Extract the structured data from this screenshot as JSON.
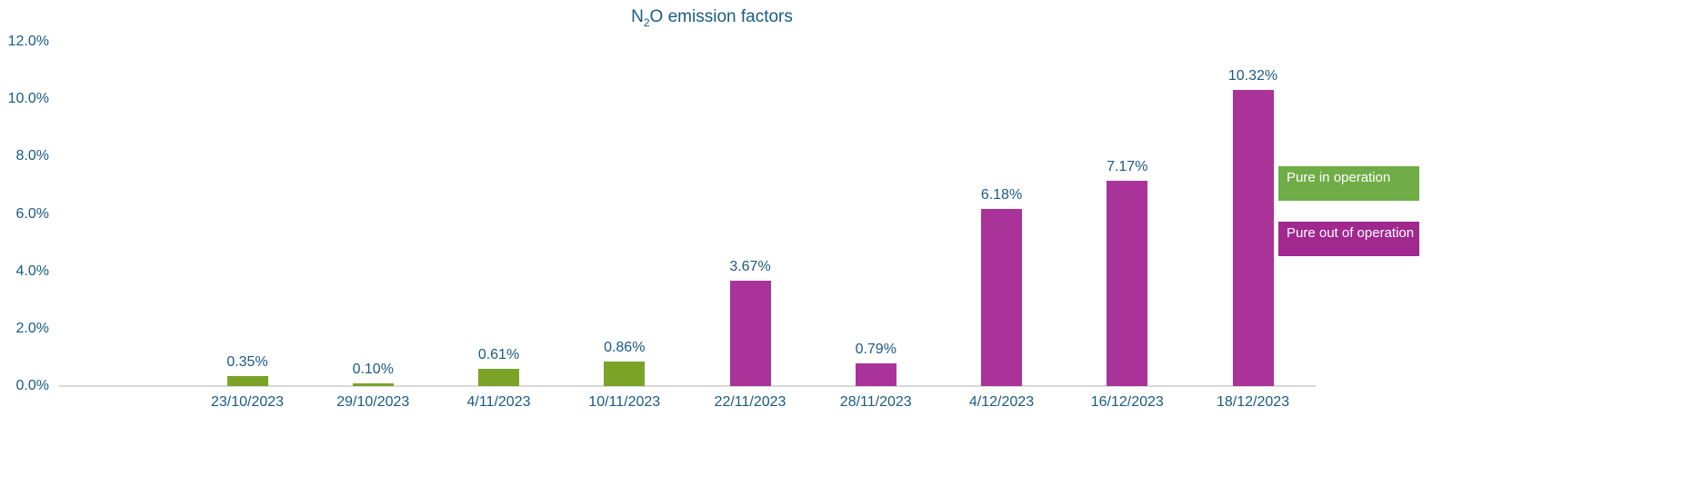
{
  "chart_data": {
    "type": "bar",
    "title": "N2O emission factors",
    "title_parts": {
      "pre": "N",
      "sub": "2",
      "post": "O emission factors"
    },
    "xlabel": "",
    "ylabel": "",
    "ylim": [
      0,
      12
    ],
    "yticks": [
      "0.0%",
      "2.0%",
      "4.0%",
      "6.0%",
      "8.0%",
      "10.0%",
      "12.0%"
    ],
    "grid": false,
    "legend_position": "right",
    "categories": [
      "23/10/2023",
      "29/10/2023",
      "4/11/2023",
      "10/11/2023",
      "22/11/2023",
      "28/11/2023",
      "4/12/2023",
      "16/12/2023",
      "18/12/2023"
    ],
    "values": [
      0.35,
      0.1,
      0.61,
      0.86,
      3.67,
      0.79,
      6.18,
      7.17,
      10.32
    ],
    "value_labels": [
      "0.35%",
      "0.10%",
      "0.61%",
      "0.86%",
      "3.67%",
      "0.79%",
      "6.18%",
      "7.17%",
      "10.32%"
    ],
    "bar_series": [
      "Pure in operation",
      "Pure in operation",
      "Pure in operation",
      "Pure in operation",
      "Pure out of operation",
      "Pure out of operation",
      "Pure out of operation",
      "Pure out of operation",
      "Pure out of operation"
    ],
    "series": [
      {
        "name": "Pure in operation",
        "color": "#7aa328",
        "legend_color": "#70ad47",
        "categories": [
          "23/10/2023",
          "29/10/2023",
          "4/11/2023",
          "10/11/2023"
        ],
        "values": [
          0.35,
          0.1,
          0.61,
          0.86
        ]
      },
      {
        "name": "Pure out of operation",
        "color": "#aa3399",
        "legend_color": "#a0288f",
        "categories": [
          "22/11/2023",
          "28/11/2023",
          "4/12/2023",
          "16/12/2023",
          "18/12/2023"
        ],
        "values": [
          3.67,
          0.79,
          6.18,
          7.17,
          10.32
        ]
      }
    ]
  },
  "legend": {
    "items": [
      {
        "label": "Pure in operation",
        "color": "#70ad47"
      },
      {
        "label": "Pure out of operation",
        "color": "#a0288f"
      }
    ]
  },
  "colors": {
    "text": "#1a5a84",
    "axis": "#d9d9d9"
  }
}
